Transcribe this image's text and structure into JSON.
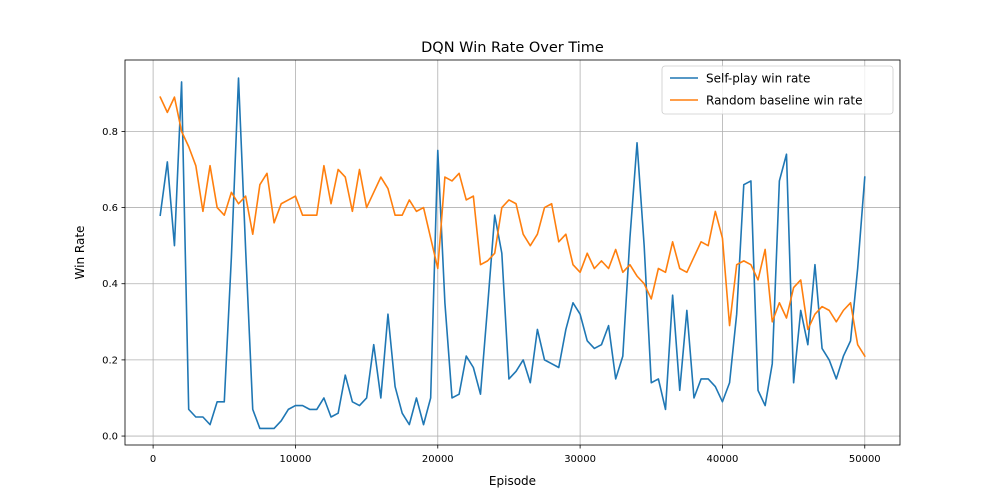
{
  "chart_data": {
    "type": "line",
    "title": "DQN Win Rate Over Time",
    "xlabel": "Episode",
    "ylabel": "Win Rate",
    "xlim": [
      -1975,
      52475
    ],
    "ylim": [
      -0.0235,
      0.9875
    ],
    "x_ticks": [
      0,
      10000,
      20000,
      30000,
      40000,
      50000
    ],
    "y_ticks": [
      0.0,
      0.2,
      0.4,
      0.6,
      0.8
    ],
    "x_tick_labels": [
      "0",
      "10000",
      "20000",
      "30000",
      "40000",
      "50000"
    ],
    "y_tick_labels": [
      "0.0",
      "0.2",
      "0.4",
      "0.6",
      "0.8"
    ],
    "grid": true,
    "legend_position": "top-right",
    "x": [
      500,
      1000,
      1500,
      2000,
      2500,
      3000,
      3500,
      4000,
      4500,
      5000,
      5500,
      6000,
      6500,
      7000,
      7500,
      8000,
      8500,
      9000,
      9500,
      10000,
      10500,
      11000,
      11500,
      12000,
      12500,
      13000,
      13500,
      14000,
      14500,
      15000,
      15500,
      16000,
      16500,
      17000,
      17500,
      18000,
      18500,
      19000,
      19500,
      20000,
      20500,
      21000,
      21500,
      22000,
      22500,
      23000,
      23500,
      24000,
      24500,
      25000,
      25500,
      26000,
      26500,
      27000,
      27500,
      28000,
      28500,
      29000,
      29500,
      30000,
      30500,
      31000,
      31500,
      32000,
      32500,
      33000,
      33500,
      34000,
      34500,
      35000,
      35500,
      36000,
      36500,
      37000,
      37500,
      38000,
      38500,
      39000,
      39500,
      40000,
      40500,
      41000,
      41500,
      42000,
      42500,
      43000,
      43500,
      44000,
      44500,
      45000,
      45500,
      46000,
      46500,
      47000,
      47500,
      48000,
      48500,
      49000,
      49500,
      50000
    ],
    "series": [
      {
        "name": "Self-play win rate",
        "color": "#1f77b4",
        "values": [
          0.58,
          0.72,
          0.5,
          0.93,
          0.07,
          0.05,
          0.05,
          0.03,
          0.09,
          0.09,
          0.47,
          0.94,
          0.49,
          0.07,
          0.02,
          0.02,
          0.02,
          0.04,
          0.07,
          0.08,
          0.08,
          0.07,
          0.07,
          0.1,
          0.05,
          0.06,
          0.16,
          0.09,
          0.08,
          0.1,
          0.24,
          0.1,
          0.32,
          0.13,
          0.06,
          0.03,
          0.1,
          0.03,
          0.1,
          0.75,
          0.35,
          0.1,
          0.11,
          0.21,
          0.18,
          0.11,
          0.34,
          0.58,
          0.48,
          0.15,
          0.17,
          0.2,
          0.14,
          0.28,
          0.2,
          0.19,
          0.18,
          0.28,
          0.35,
          0.32,
          0.25,
          0.23,
          0.24,
          0.29,
          0.15,
          0.21,
          0.52,
          0.77,
          0.5,
          0.14,
          0.15,
          0.07,
          0.37,
          0.12,
          0.33,
          0.1,
          0.15,
          0.15,
          0.13,
          0.09,
          0.14,
          0.32,
          0.66,
          0.67,
          0.12,
          0.08,
          0.19,
          0.67,
          0.74,
          0.14,
          0.33,
          0.24,
          0.45,
          0.23,
          0.2,
          0.15,
          0.21,
          0.25,
          0.44,
          0.68
        ]
      },
      {
        "name": "Random baseline win rate",
        "color": "#ff7f0e",
        "values": [
          0.89,
          0.85,
          0.89,
          0.8,
          0.76,
          0.71,
          0.59,
          0.71,
          0.6,
          0.58,
          0.64,
          0.61,
          0.63,
          0.53,
          0.66,
          0.69,
          0.56,
          0.61,
          0.62,
          0.63,
          0.58,
          0.58,
          0.58,
          0.71,
          0.61,
          0.7,
          0.68,
          0.59,
          0.7,
          0.6,
          0.64,
          0.68,
          0.65,
          0.58,
          0.58,
          0.62,
          0.59,
          0.6,
          0.52,
          0.44,
          0.68,
          0.67,
          0.69,
          0.62,
          0.63,
          0.45,
          0.46,
          0.48,
          0.6,
          0.62,
          0.61,
          0.53,
          0.5,
          0.53,
          0.6,
          0.61,
          0.51,
          0.53,
          0.45,
          0.43,
          0.48,
          0.44,
          0.46,
          0.44,
          0.49,
          0.43,
          0.45,
          0.42,
          0.4,
          0.36,
          0.44,
          0.43,
          0.51,
          0.44,
          0.43,
          0.47,
          0.51,
          0.5,
          0.59,
          0.52,
          0.29,
          0.45,
          0.46,
          0.45,
          0.41,
          0.49,
          0.3,
          0.35,
          0.31,
          0.39,
          0.41,
          0.28,
          0.32,
          0.34,
          0.33,
          0.3,
          0.33,
          0.35,
          0.24,
          0.21
        ]
      }
    ]
  }
}
